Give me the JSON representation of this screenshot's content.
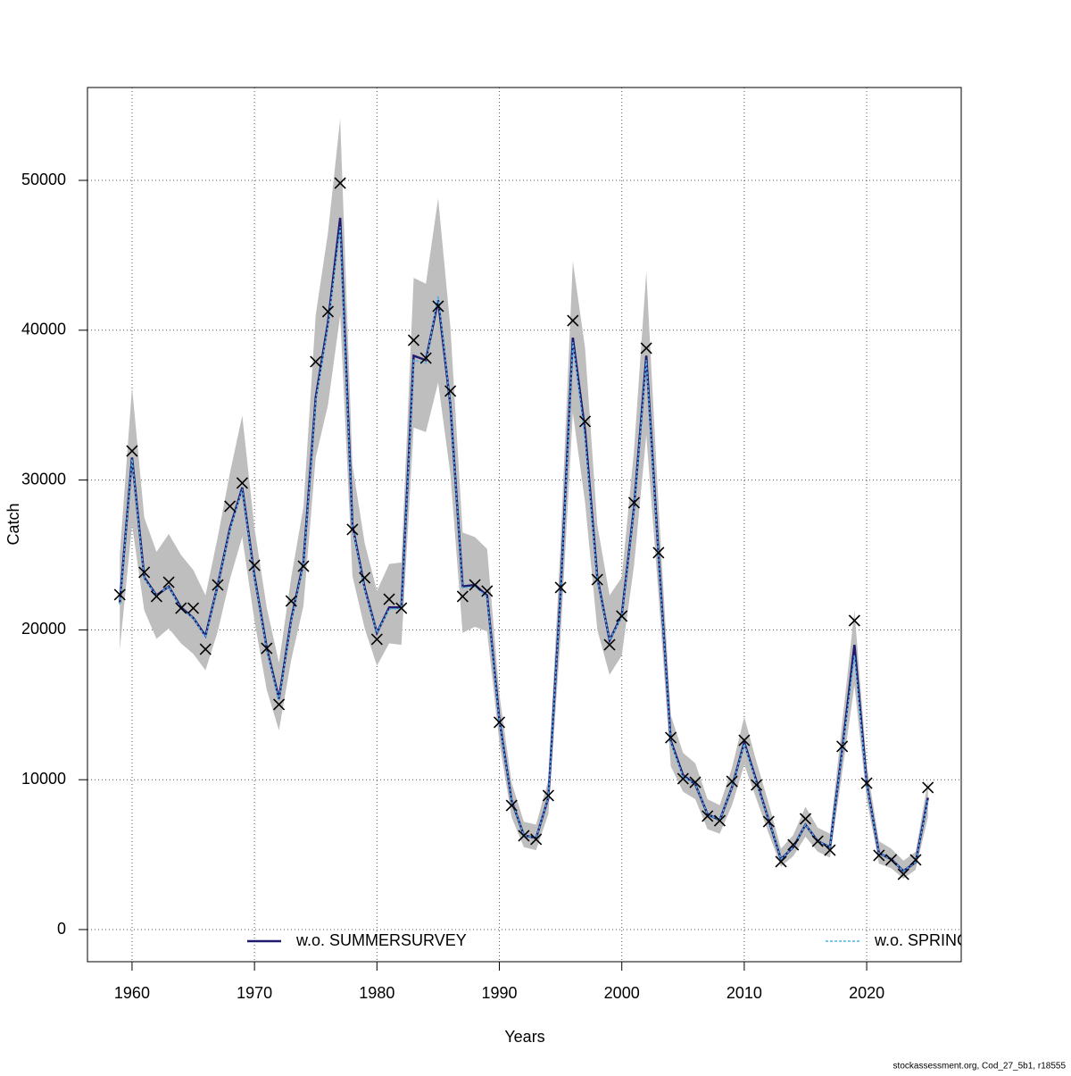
{
  "chart_data": {
    "type": "line",
    "xlabel": "Years",
    "ylabel": "Catch",
    "footnote": "stockassessment.org, Cod_27_5b1, r18555",
    "x": [
      1959,
      1960,
      1961,
      1962,
      1963,
      1964,
      1965,
      1966,
      1967,
      1968,
      1969,
      1970,
      1971,
      1972,
      1973,
      1974,
      1975,
      1976,
      1977,
      1978,
      1979,
      1980,
      1981,
      1982,
      1983,
      1984,
      1985,
      1986,
      1987,
      1988,
      1989,
      1990,
      1991,
      1992,
      1993,
      1994,
      1995,
      1996,
      1997,
      1998,
      1999,
      2000,
      2001,
      2002,
      2003,
      2004,
      2005,
      2006,
      2007,
      2008,
      2009,
      2010,
      2011,
      2012,
      2013,
      2014,
      2015,
      2016,
      2017,
      2018,
      2019,
      2020,
      2021,
      2022,
      2023,
      2024,
      2025
    ],
    "series": [
      {
        "name": "w.o. SUMMERSURVEY",
        "color": "#1f1a6e",
        "dash": false,
        "values": [
          21800,
          31500,
          23500,
          22300,
          22900,
          21500,
          20800,
          19600,
          23000,
          26800,
          29500,
          23600,
          18800,
          15400,
          20700,
          24500,
          35500,
          40500,
          47500,
          27000,
          22800,
          19800,
          21500,
          21500,
          38300,
          38000,
          42000,
          35000,
          22900,
          23000,
          22300,
          14000,
          8600,
          6300,
          6100,
          8800,
          22500,
          39500,
          33300,
          23500,
          19300,
          21000,
          28200,
          38300,
          25000,
          12600,
          10300,
          9700,
          7700,
          7300,
          9500,
          12500,
          9900,
          7300,
          4700,
          5500,
          7000,
          5900,
          5500,
          12000,
          19000,
          9800,
          5100,
          4700,
          3900,
          4500,
          8800
        ]
      },
      {
        "name": "w.o. SPRINGSURVEY",
        "color": "#4fb3e8",
        "dash": true,
        "values": [
          21700,
          31400,
          23400,
          22300,
          22900,
          21400,
          20800,
          19500,
          23000,
          26700,
          29400,
          23500,
          18700,
          15300,
          20600,
          24400,
          35300,
          40300,
          46900,
          26900,
          22700,
          19800,
          21400,
          21400,
          38000,
          37800,
          42300,
          35000,
          22800,
          22900,
          22200,
          13900,
          8600,
          6300,
          6100,
          8800,
          22400,
          39200,
          32800,
          23400,
          19300,
          20900,
          28100,
          38000,
          24900,
          12500,
          10200,
          9700,
          7700,
          7300,
          9500,
          12400,
          9800,
          7300,
          4700,
          5500,
          7000,
          5900,
          5500,
          11900,
          18300,
          9700,
          5100,
          4700,
          3900,
          4500,
          8700
        ]
      }
    ],
    "band_lower": [
      18700,
      27000,
      21300,
      19400,
      20100,
      19100,
      18400,
      17300,
      19900,
      23400,
      26200,
      20600,
      16000,
      13300,
      18000,
      21600,
      31500,
      35000,
      41000,
      23600,
      20100,
      17600,
      19100,
      19000,
      33500,
      33200,
      36500,
      30400,
      19800,
      20200,
      19900,
      12500,
      7500,
      5500,
      5300,
      7700,
      19500,
      34500,
      28500,
      20000,
      17000,
      18300,
      24300,
      33000,
      22300,
      10900,
      9200,
      8700,
      6700,
      6400,
      8300,
      11000,
      8700,
      6400,
      4200,
      4900,
      6200,
      5200,
      4800,
      10500,
      16300,
      8700,
      4400,
      4100,
      3400,
      4000,
      7500
    ],
    "band_upper": [
      25000,
      36200,
      27500,
      25200,
      26400,
      25000,
      24000,
      22300,
      26200,
      30500,
      34300,
      26800,
      21500,
      17800,
      23500,
      28200,
      41000,
      46500,
      54100,
      31000,
      25800,
      22600,
      24400,
      24500,
      43500,
      43100,
      48800,
      40200,
      26500,
      26200,
      25400,
      15700,
      9800,
      7200,
      7000,
      10000,
      25800,
      44600,
      38800,
      27000,
      22300,
      23500,
      32000,
      43900,
      28300,
      14300,
      11800,
      11100,
      8700,
      8300,
      10800,
      14200,
      11200,
      8400,
      5400,
      6300,
      8200,
      6800,
      6400,
      13800,
      21300,
      11000,
      5900,
      5400,
      4600,
      5200,
      9900
    ],
    "band_color": "#bebebe",
    "observed": [
      22350,
      31940,
      23840,
      22230,
      23180,
      21450,
      21450,
      18710,
      23000,
      28250,
      29800,
      24310,
      18770,
      15020,
      21930,
      24250,
      37900,
      41240,
      49820,
      26700,
      23480,
      19370,
      22050,
      21450,
      39330,
      38140,
      41600,
      35940,
      22230,
      23000,
      22590,
      13830,
      8280,
      6260,
      6020,
      8940,
      22830,
      40640,
      33910,
      23360,
      19010,
      20920,
      28490,
      38800,
      25150,
      12810,
      10070,
      9830,
      7570,
      7270,
      9890,
      12630,
      9650,
      7210,
      4530,
      5660,
      7390,
      5900,
      5300,
      12220,
      20620,
      9770,
      4950,
      4650,
      3690,
      4650,
      9480
    ],
    "xlim": [
      1956.36,
      2027.72
    ],
    "ylim": [
      -2145,
      56198
    ],
    "xticks": [
      1960,
      1970,
      1980,
      1990,
      2000,
      2010,
      2020
    ],
    "yticks": [
      0,
      10000,
      20000,
      30000,
      40000,
      50000
    ],
    "grid": true,
    "legend": "bottom"
  }
}
